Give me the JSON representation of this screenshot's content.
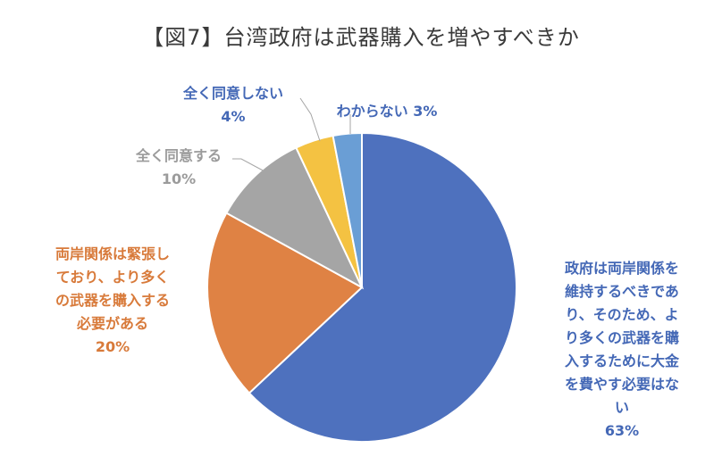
{
  "chart_data": {
    "type": "pie",
    "title": "【図7】台湾政府は武器購入を増やすべきか",
    "slices": [
      {
        "label": "政府は両岸関係を維持するべきであり、そのため、より多くの武器を購入するために大金を費やす必要はない",
        "value": 63,
        "value_label": "63%",
        "color": "#4e71be"
      },
      {
        "label": "両岸関係は緊張しており、より多くの武器を購入する必要がある",
        "value": 20,
        "value_label": "20%",
        "color": "#df8244"
      },
      {
        "label": "全く同意する",
        "value": 10,
        "value_label": "10%",
        "color": "#a5a5a5"
      },
      {
        "label": "全く同意しない",
        "value": 4,
        "value_label": "4%",
        "color": "#f4c242"
      },
      {
        "label": "わからない",
        "value": 3,
        "value_label": "3%",
        "color": "#6a9ed5"
      }
    ],
    "start_angle_deg": 0,
    "direction": "clockwise",
    "legend": "none"
  },
  "label_lines": [
    [
      "政府は両岸関係を",
      "維持するべきであ",
      "り、そのため、よ",
      "り多くの武器を購",
      "入するために大金",
      "を費やす必要はな",
      "い"
    ],
    [
      "両岸関係は緊張し",
      "ており、より多く",
      "の武器を購入する",
      "必要がある"
    ],
    [
      "全く同意する"
    ],
    [
      "全く同意しない"
    ],
    [
      "わからない"
    ]
  ],
  "label_text_colors": [
    "#4468b6",
    "#d87a3a",
    "#9b9b9b",
    "#4468b6",
    "#4468b6"
  ]
}
